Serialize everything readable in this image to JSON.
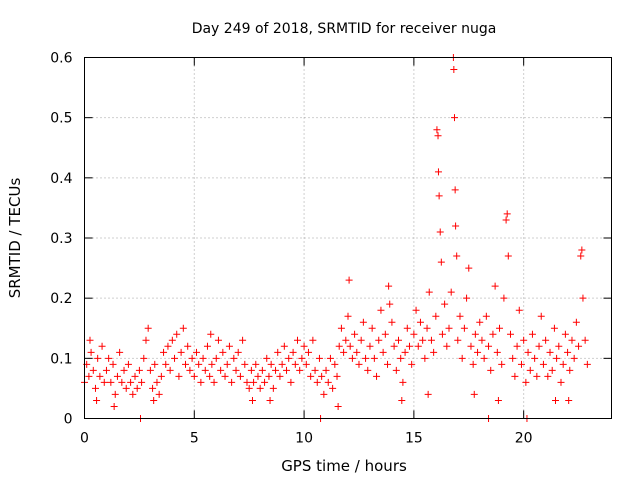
{
  "chart_data": {
    "type": "scatter",
    "title": "Day 249 of 2018, SRMTID for receiver nuga",
    "xlabel": "GPS time / hours",
    "ylabel": "SRMTID / TECUs",
    "xlim": [
      0,
      24
    ],
    "ylim": [
      0,
      0.6
    ],
    "x_ticks": [
      "0",
      "5",
      "10",
      "15",
      "20"
    ],
    "y_ticks": [
      "0",
      "0.1",
      "0.2",
      "0.3",
      "0.4",
      "0.5",
      "0.6"
    ],
    "x_tick_values": [
      0,
      5,
      10,
      15,
      20
    ],
    "y_tick_values": [
      0,
      0.1,
      0.2,
      0.3,
      0.4,
      0.5,
      0.6
    ],
    "grid": true,
    "marker": "plus",
    "color": "#ff0000",
    "series": [
      {
        "name": "SRMTID",
        "points": [
          [
            0.0,
            0.06
          ],
          [
            0.1,
            0.09
          ],
          [
            0.2,
            0.07
          ],
          [
            0.3,
            0.11
          ],
          [
            0.4,
            0.08
          ],
          [
            0.5,
            0.05
          ],
          [
            0.6,
            0.1
          ],
          [
            0.7,
            0.07
          ],
          [
            0.8,
            0.12
          ],
          [
            0.9,
            0.06
          ],
          [
            1.0,
            0.08
          ],
          [
            1.1,
            0.1
          ],
          [
            1.2,
            0.06
          ],
          [
            1.3,
            0.09
          ],
          [
            1.4,
            0.04
          ],
          [
            1.5,
            0.07
          ],
          [
            1.6,
            0.11
          ],
          [
            1.7,
            0.06
          ],
          [
            1.8,
            0.08
          ],
          [
            1.9,
            0.05
          ],
          [
            2.0,
            0.09
          ],
          [
            2.1,
            0.06
          ],
          [
            2.2,
            0.04
          ],
          [
            2.3,
            0.07
          ],
          [
            2.4,
            0.05
          ],
          [
            2.5,
            0.08
          ],
          [
            2.6,
            0.06
          ],
          [
            2.7,
            0.1
          ],
          [
            2.8,
            0.13
          ],
          [
            2.9,
            0.15
          ],
          [
            3.0,
            0.08
          ],
          [
            3.1,
            0.05
          ],
          [
            3.2,
            0.09
          ],
          [
            3.3,
            0.06
          ],
          [
            3.4,
            0.04
          ],
          [
            3.5,
            0.07
          ],
          [
            3.6,
            0.11
          ],
          [
            3.7,
            0.09
          ],
          [
            3.8,
            0.12
          ],
          [
            3.9,
            0.08
          ],
          [
            4.0,
            0.13
          ],
          [
            4.1,
            0.1
          ],
          [
            4.2,
            0.14
          ],
          [
            4.3,
            0.07
          ],
          [
            4.4,
            0.11
          ],
          [
            4.5,
            0.15
          ],
          [
            4.6,
            0.09
          ],
          [
            4.7,
            0.12
          ],
          [
            4.8,
            0.08
          ],
          [
            4.9,
            0.1
          ],
          [
            5.0,
            0.07
          ],
          [
            5.1,
            0.11
          ],
          [
            5.2,
            0.09
          ],
          [
            5.3,
            0.06
          ],
          [
            5.4,
            0.1
          ],
          [
            5.5,
            0.08
          ],
          [
            5.6,
            0.12
          ],
          [
            5.7,
            0.07
          ],
          [
            5.8,
            0.09
          ],
          [
            5.9,
            0.06
          ],
          [
            6.0,
            0.1
          ],
          [
            6.1,
            0.13
          ],
          [
            6.2,
            0.08
          ],
          [
            6.3,
            0.11
          ],
          [
            6.4,
            0.07
          ],
          [
            6.5,
            0.09
          ],
          [
            6.6,
            0.12
          ],
          [
            6.7,
            0.06
          ],
          [
            6.8,
            0.1
          ],
          [
            6.9,
            0.08
          ],
          [
            7.0,
            0.11
          ],
          [
            7.1,
            0.07
          ],
          [
            7.2,
            0.13
          ],
          [
            7.3,
            0.09
          ],
          [
            7.4,
            0.06
          ],
          [
            7.5,
            0.05
          ],
          [
            7.6,
            0.08
          ],
          [
            7.7,
            0.06
          ],
          [
            7.8,
            0.09
          ],
          [
            7.9,
            0.07
          ],
          [
            8.0,
            0.05
          ],
          [
            8.1,
            0.08
          ],
          [
            8.2,
            0.06
          ],
          [
            8.3,
            0.1
          ],
          [
            8.4,
            0.07
          ],
          [
            8.5,
            0.09
          ],
          [
            8.6,
            0.05
          ],
          [
            8.7,
            0.08
          ],
          [
            8.8,
            0.11
          ],
          [
            8.9,
            0.07
          ],
          [
            9.0,
            0.09
          ],
          [
            9.1,
            0.12
          ],
          [
            9.2,
            0.08
          ],
          [
            9.3,
            0.1
          ],
          [
            9.4,
            0.06
          ],
          [
            9.5,
            0.11
          ],
          [
            9.6,
            0.09
          ],
          [
            9.7,
            0.13
          ],
          [
            9.8,
            0.08
          ],
          [
            9.9,
            0.1
          ],
          [
            10.0,
            0.12
          ],
          [
            10.1,
            0.09
          ],
          [
            10.2,
            0.11
          ],
          [
            10.3,
            0.07
          ],
          [
            10.4,
            0.13
          ],
          [
            10.5,
            0.08
          ],
          [
            10.6,
            0.06
          ],
          [
            10.7,
            0.1
          ],
          [
            10.8,
            0.07
          ],
          [
            10.9,
            0.04
          ],
          [
            11.0,
            0.08
          ],
          [
            11.1,
            0.06
          ],
          [
            11.2,
            0.1
          ],
          [
            11.3,
            0.05
          ],
          [
            11.4,
            0.09
          ],
          [
            11.5,
            0.07
          ],
          [
            11.6,
            0.12
          ],
          [
            11.7,
            0.15
          ],
          [
            11.8,
            0.11
          ],
          [
            11.9,
            0.13
          ],
          [
            12.0,
            0.17
          ],
          [
            12.1,
            0.12
          ],
          [
            12.2,
            0.1
          ],
          [
            12.3,
            0.14
          ],
          [
            12.4,
            0.11
          ],
          [
            12.5,
            0.09
          ],
          [
            12.6,
            0.13
          ],
          [
            12.7,
            0.16
          ],
          [
            12.8,
            0.1
          ],
          [
            12.9,
            0.08
          ],
          [
            13.0,
            0.12
          ],
          [
            13.1,
            0.15
          ],
          [
            13.2,
            0.1
          ],
          [
            13.3,
            0.07
          ],
          [
            13.4,
            0.13
          ],
          [
            13.5,
            0.18
          ],
          [
            13.6,
            0.11
          ],
          [
            13.7,
            0.14
          ],
          [
            13.8,
            0.09
          ],
          [
            13.9,
            0.19
          ],
          [
            14.0,
            0.16
          ],
          [
            14.1,
            0.12
          ],
          [
            14.2,
            0.08
          ],
          [
            14.3,
            0.13
          ],
          [
            14.4,
            0.1
          ],
          [
            14.5,
            0.06
          ],
          [
            14.6,
            0.11
          ],
          [
            14.7,
            0.15
          ],
          [
            14.8,
            0.12
          ],
          [
            14.9,
            0.09
          ],
          [
            15.0,
            0.14
          ],
          [
            15.1,
            0.18
          ],
          [
            15.2,
            0.12
          ],
          [
            15.3,
            0.16
          ],
          [
            15.4,
            0.13
          ],
          [
            15.5,
            0.1
          ],
          [
            15.6,
            0.15
          ],
          [
            15.7,
            0.21
          ],
          [
            15.8,
            0.13
          ],
          [
            15.9,
            0.11
          ],
          [
            16.0,
            0.17
          ],
          [
            16.05,
            0.48
          ],
          [
            16.1,
            0.47
          ],
          [
            16.12,
            0.41
          ],
          [
            16.15,
            0.37
          ],
          [
            16.2,
            0.31
          ],
          [
            16.25,
            0.26
          ],
          [
            16.3,
            0.14
          ],
          [
            16.4,
            0.19
          ],
          [
            16.5,
            0.12
          ],
          [
            16.6,
            0.15
          ],
          [
            16.7,
            0.21
          ],
          [
            16.8,
            0.6
          ],
          [
            16.82,
            0.58
          ],
          [
            16.85,
            0.5
          ],
          [
            16.88,
            0.38
          ],
          [
            16.9,
            0.32
          ],
          [
            16.95,
            0.27
          ],
          [
            17.0,
            0.13
          ],
          [
            17.1,
            0.17
          ],
          [
            17.2,
            0.1
          ],
          [
            17.3,
            0.15
          ],
          [
            17.4,
            0.2
          ],
          [
            17.5,
            0.25
          ],
          [
            17.6,
            0.12
          ],
          [
            17.7,
            0.09
          ],
          [
            17.8,
            0.14
          ],
          [
            17.9,
            0.11
          ],
          [
            18.0,
            0.16
          ],
          [
            18.1,
            0.13
          ],
          [
            18.2,
            0.1
          ],
          [
            18.3,
            0.17
          ],
          [
            18.4,
            0.12
          ],
          [
            18.5,
            0.08
          ],
          [
            18.6,
            0.14
          ],
          [
            18.7,
            0.22
          ],
          [
            18.8,
            0.11
          ],
          [
            18.9,
            0.15
          ],
          [
            19.0,
            0.09
          ],
          [
            19.1,
            0.2
          ],
          [
            19.2,
            0.33
          ],
          [
            19.25,
            0.34
          ],
          [
            19.3,
            0.27
          ],
          [
            19.4,
            0.14
          ],
          [
            19.5,
            0.1
          ],
          [
            19.6,
            0.07
          ],
          [
            19.7,
            0.12
          ],
          [
            19.8,
            0.18
          ],
          [
            19.9,
            0.09
          ],
          [
            20.0,
            0.13
          ],
          [
            20.1,
            0.06
          ],
          [
            20.2,
            0.11
          ],
          [
            20.3,
            0.08
          ],
          [
            20.4,
            0.14
          ],
          [
            20.5,
            0.1
          ],
          [
            20.6,
            0.07
          ],
          [
            20.7,
            0.12
          ],
          [
            20.8,
            0.17
          ],
          [
            20.9,
            0.09
          ],
          [
            21.0,
            0.13
          ],
          [
            21.1,
            0.07
          ],
          [
            21.2,
            0.11
          ],
          [
            21.3,
            0.08
          ],
          [
            21.4,
            0.15
          ],
          [
            21.5,
            0.1
          ],
          [
            21.6,
            0.12
          ],
          [
            21.7,
            0.06
          ],
          [
            21.8,
            0.09
          ],
          [
            21.9,
            0.14
          ],
          [
            22.0,
            0.11
          ],
          [
            22.1,
            0.08
          ],
          [
            22.2,
            0.13
          ],
          [
            22.3,
            0.1
          ],
          [
            22.4,
            0.16
          ],
          [
            22.5,
            0.12
          ],
          [
            22.6,
            0.27
          ],
          [
            22.65,
            0.28
          ],
          [
            22.7,
            0.2
          ],
          [
            22.8,
            0.13
          ],
          [
            22.9,
            0.09
          ],
          [
            1.35,
            0.02
          ],
          [
            2.55,
            0.0
          ],
          [
            10.75,
            0.0
          ],
          [
            18.4,
            0.0
          ],
          [
            20.15,
            0.0
          ],
          [
            0.25,
            0.13
          ],
          [
            0.55,
            0.03
          ],
          [
            3.15,
            0.03
          ],
          [
            5.75,
            0.14
          ],
          [
            7.65,
            0.03
          ],
          [
            8.45,
            0.03
          ],
          [
            11.55,
            0.02
          ],
          [
            12.05,
            0.23
          ],
          [
            13.85,
            0.22
          ],
          [
            14.45,
            0.03
          ],
          [
            15.65,
            0.04
          ],
          [
            17.75,
            0.04
          ],
          [
            18.85,
            0.03
          ],
          [
            21.45,
            0.03
          ],
          [
            22.05,
            0.03
          ]
        ]
      }
    ]
  }
}
